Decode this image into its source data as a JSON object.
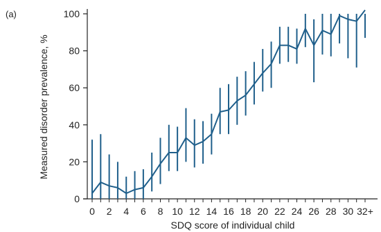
{
  "chart_data": {
    "type": "line",
    "panel_label": "(a)",
    "xlabel": "SDQ score of individual child",
    "ylabel": "Measured disorder prevalence, %",
    "ylim": [
      0,
      100
    ],
    "xlim": [
      0,
      32
    ],
    "x_ticks": [
      "0",
      "2",
      "4",
      "6",
      "8",
      "10",
      "12",
      "14",
      "16",
      "18",
      "20",
      "22",
      "24",
      "26",
      "28",
      "30",
      "32+"
    ],
    "y_ticks": [
      "0",
      "20",
      "40",
      "60",
      "80",
      "100"
    ],
    "grid": false,
    "legend": "none",
    "colors": {
      "line": "#1f5f8b",
      "axis": "#222222"
    },
    "series": [
      {
        "x": [
          0,
          1,
          2,
          3,
          4,
          5,
          6,
          7,
          8,
          9,
          10,
          11,
          12,
          13,
          14,
          15,
          16,
          17,
          18,
          19,
          20,
          21,
          22,
          23,
          24,
          25,
          26,
          27,
          28,
          29,
          30,
          31,
          32
        ],
        "y": [
          3,
          9,
          7,
          6,
          3,
          5,
          6,
          12,
          19,
          25,
          25,
          33,
          29,
          31,
          35,
          47,
          48,
          53,
          56,
          62,
          68,
          73,
          83,
          83,
          81,
          92,
          83,
          91,
          89,
          99,
          97,
          96,
          102
        ],
        "lower": [
          0,
          0,
          0,
          0,
          0,
          0,
          0,
          4,
          8,
          15,
          15,
          20,
          17,
          19,
          24,
          35,
          35,
          40,
          45,
          51,
          58,
          60,
          73,
          74,
          73,
          82,
          63,
          78,
          77,
          84,
          76,
          71,
          87
        ],
        "upper": [
          32,
          35,
          24,
          20,
          12,
          15,
          16,
          25,
          33,
          40,
          39,
          49,
          43,
          42,
          46,
          60,
          62,
          66,
          69,
          74,
          81,
          85,
          93,
          93,
          92,
          100,
          97,
          100,
          100,
          100,
          100,
          100,
          100
        ]
      }
    ]
  }
}
